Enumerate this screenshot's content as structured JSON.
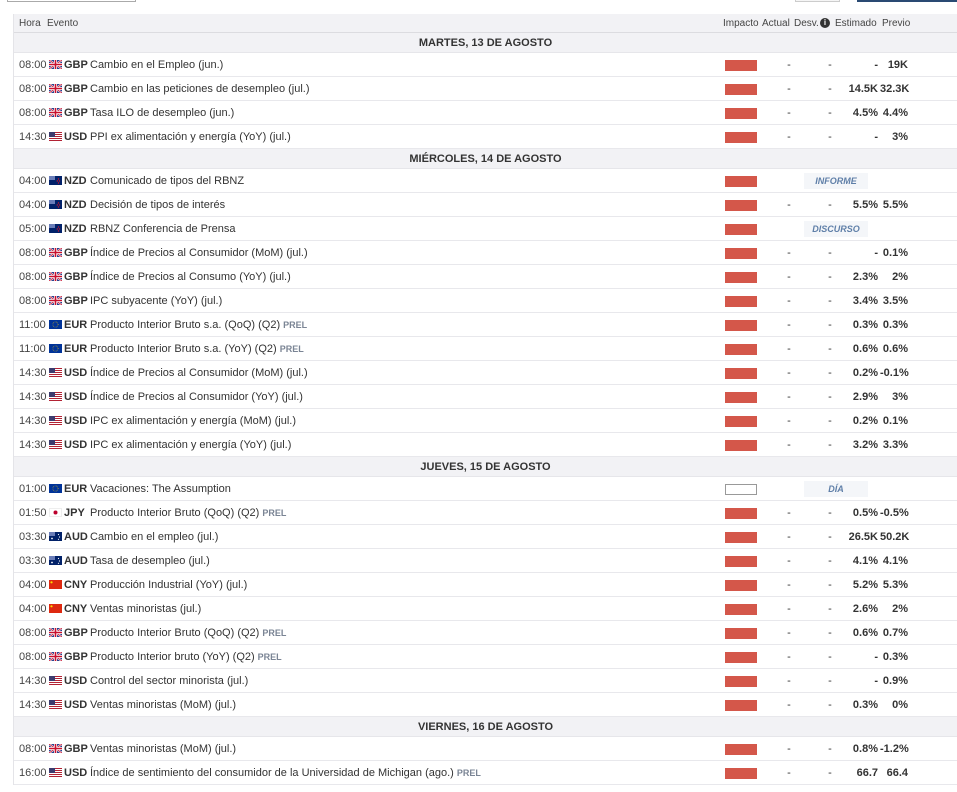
{
  "header": {
    "hora": "Hora",
    "evento": "Evento",
    "impacto": "Impacto",
    "actual": "Actual",
    "desv": "Desv.",
    "info_icon": "i",
    "estimado": "Estimado",
    "previo": "Previo"
  },
  "colors": {
    "impact_high": "#d4574a",
    "tag_text": "#5f7fa8"
  },
  "days": [
    {
      "label": "MARTES, 13 DE AGOSTO",
      "rows": [
        {
          "time": "08:00",
          "flag": "gb",
          "cur": "GBP",
          "event": "Cambio en el Empleo (jun.)",
          "prel": "",
          "impact": "high",
          "actual": "-",
          "desv": "-",
          "est": "-",
          "prev": "19K"
        },
        {
          "time": "08:00",
          "flag": "gb",
          "cur": "GBP",
          "event": "Cambio en las peticiones de desempleo (jul.)",
          "prel": "",
          "impact": "high",
          "actual": "-",
          "desv": "-",
          "est": "14.5K",
          "prev": "32.3K"
        },
        {
          "time": "08:00",
          "flag": "gb",
          "cur": "GBP",
          "event": "Tasa ILO de desempleo (jun.)",
          "prel": "",
          "impact": "high",
          "actual": "-",
          "desv": "-",
          "est": "4.5%",
          "prev": "4.4%"
        },
        {
          "time": "14:30",
          "flag": "us",
          "cur": "USD",
          "event": "PPI ex alimentación y energía (YoY) (jul.)",
          "prel": "",
          "impact": "high",
          "actual": "-",
          "desv": "-",
          "est": "-",
          "prev": "3%"
        }
      ]
    },
    {
      "label": "MIÉRCOLES, 14 DE AGOSTO",
      "rows": [
        {
          "time": "04:00",
          "flag": "nz",
          "cur": "NZD",
          "event": "Comunicado de tipos del RBNZ",
          "prel": "",
          "impact": "high",
          "tag": "INFORME"
        },
        {
          "time": "04:00",
          "flag": "nz",
          "cur": "NZD",
          "event": "Decisión de tipos de interés",
          "prel": "",
          "impact": "high",
          "actual": "-",
          "desv": "-",
          "est": "5.5%",
          "prev": "5.5%"
        },
        {
          "time": "05:00",
          "flag": "nz",
          "cur": "NZD",
          "event": "RBNZ Conferencia de Prensa",
          "prel": "",
          "impact": "high",
          "tag": "DISCURSO"
        },
        {
          "time": "08:00",
          "flag": "gb",
          "cur": "GBP",
          "event": "Índice de Precios al Consumidor (MoM) (jul.)",
          "prel": "",
          "impact": "high",
          "actual": "-",
          "desv": "-",
          "est": "-",
          "prev": "0.1%"
        },
        {
          "time": "08:00",
          "flag": "gb",
          "cur": "GBP",
          "event": "Índice de Precios al Consumo (YoY) (jul.)",
          "prel": "",
          "impact": "high",
          "actual": "-",
          "desv": "-",
          "est": "2.3%",
          "prev": "2%"
        },
        {
          "time": "08:00",
          "flag": "gb",
          "cur": "GBP",
          "event": "IPC subyacente (YoY) (jul.)",
          "prel": "",
          "impact": "high",
          "actual": "-",
          "desv": "-",
          "est": "3.4%",
          "prev": "3.5%"
        },
        {
          "time": "11:00",
          "flag": "eu",
          "cur": "EUR",
          "event": "Producto Interior Bruto s.a. (QoQ) (Q2)",
          "prel": "PREL",
          "impact": "high",
          "actual": "-",
          "desv": "-",
          "est": "0.3%",
          "prev": "0.3%"
        },
        {
          "time": "11:00",
          "flag": "eu",
          "cur": "EUR",
          "event": "Producto Interior Bruto s.a. (YoY) (Q2)",
          "prel": "PREL",
          "impact": "high",
          "actual": "-",
          "desv": "-",
          "est": "0.6%",
          "prev": "0.6%"
        },
        {
          "time": "14:30",
          "flag": "us",
          "cur": "USD",
          "event": "Índice de Precios al Consumidor (MoM) (jul.)",
          "prel": "",
          "impact": "high",
          "actual": "-",
          "desv": "-",
          "est": "0.2%",
          "prev": "-0.1%"
        },
        {
          "time": "14:30",
          "flag": "us",
          "cur": "USD",
          "event": "Índice de Precios al Consumidor (YoY) (jul.)",
          "prel": "",
          "impact": "high",
          "actual": "-",
          "desv": "-",
          "est": "2.9%",
          "prev": "3%"
        },
        {
          "time": "14:30",
          "flag": "us",
          "cur": "USD",
          "event": "IPC ex alimentación y energía (MoM) (jul.)",
          "prel": "",
          "impact": "high",
          "actual": "-",
          "desv": "-",
          "est": "0.2%",
          "prev": "0.1%"
        },
        {
          "time": "14:30",
          "flag": "us",
          "cur": "USD",
          "event": "IPC ex alimentación y energía (YoY) (jul.)",
          "prel": "",
          "impact": "high",
          "actual": "-",
          "desv": "-",
          "est": "3.2%",
          "prev": "3.3%"
        }
      ]
    },
    {
      "label": "JUEVES, 15 DE AGOSTO",
      "rows": [
        {
          "time": "01:00",
          "flag": "eu",
          "cur": "EUR",
          "event": "Vacaciones: The Assumption",
          "prel": "",
          "impact": "none",
          "tag": "DÍA COMPLETO"
        },
        {
          "time": "01:50",
          "flag": "jp",
          "cur": "JPY",
          "event": "Producto Interior Bruto (QoQ) (Q2)",
          "prel": "PREL",
          "impact": "high",
          "actual": "-",
          "desv": "-",
          "est": "0.5%",
          "prev": "-0.5%"
        },
        {
          "time": "03:30",
          "flag": "au",
          "cur": "AUD",
          "event": "Cambio en el empleo (jul.)",
          "prel": "",
          "impact": "high",
          "actual": "-",
          "desv": "-",
          "est": "26.5K",
          "prev": "50.2K"
        },
        {
          "time": "03:30",
          "flag": "au",
          "cur": "AUD",
          "event": "Tasa de desempleo (jul.)",
          "prel": "",
          "impact": "high",
          "actual": "-",
          "desv": "-",
          "est": "4.1%",
          "prev": "4.1%"
        },
        {
          "time": "04:00",
          "flag": "cn",
          "cur": "CNY",
          "event": "Producción Industrial (YoY) (jul.)",
          "prel": "",
          "impact": "high",
          "actual": "-",
          "desv": "-",
          "est": "5.2%",
          "prev": "5.3%"
        },
        {
          "time": "04:00",
          "flag": "cn",
          "cur": "CNY",
          "event": "Ventas minoristas (jul.)",
          "prel": "",
          "impact": "high",
          "actual": "-",
          "desv": "-",
          "est": "2.6%",
          "prev": "2%"
        },
        {
          "time": "08:00",
          "flag": "gb",
          "cur": "GBP",
          "event": "Producto Interior Bruto (QoQ) (Q2)",
          "prel": "PREL",
          "impact": "high",
          "actual": "-",
          "desv": "-",
          "est": "0.6%",
          "prev": "0.7%"
        },
        {
          "time": "08:00",
          "flag": "gb",
          "cur": "GBP",
          "event": "Producto Interior bruto (YoY) (Q2)",
          "prel": "PREL",
          "impact": "high",
          "actual": "-",
          "desv": "-",
          "est": "-",
          "prev": "0.3%"
        },
        {
          "time": "14:30",
          "flag": "us",
          "cur": "USD",
          "event": "Control del sector minorista (jul.)",
          "prel": "",
          "impact": "high",
          "actual": "-",
          "desv": "-",
          "est": "-",
          "prev": "0.9%"
        },
        {
          "time": "14:30",
          "flag": "us",
          "cur": "USD",
          "event": "Ventas minoristas (MoM) (jul.)",
          "prel": "",
          "impact": "high",
          "actual": "-",
          "desv": "-",
          "est": "0.3%",
          "prev": "0%"
        }
      ]
    },
    {
      "label": "VIERNES, 16 DE AGOSTO",
      "rows": [
        {
          "time": "08:00",
          "flag": "gb",
          "cur": "GBP",
          "event": "Ventas minoristas (MoM) (jul.)",
          "prel": "",
          "impact": "high",
          "actual": "-",
          "desv": "-",
          "est": "0.8%",
          "prev": "-1.2%"
        },
        {
          "time": "16:00",
          "flag": "us",
          "cur": "USD",
          "event": "Índice de sentimiento del consumidor de la Universidad de Michigan (ago.)",
          "prel": "PREL",
          "impact": "high",
          "actual": "-",
          "desv": "-",
          "est": "66.7",
          "prev": "66.4"
        }
      ]
    }
  ]
}
